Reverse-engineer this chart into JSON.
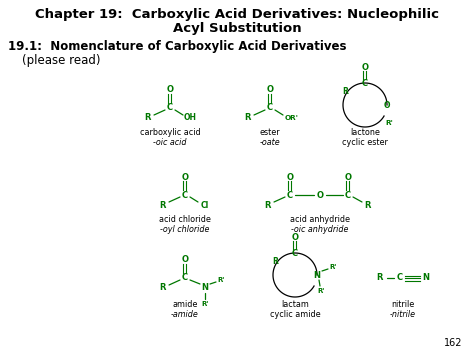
{
  "title_line1": "Chapter 19:  Carboxylic Acid Derivatives: Nucleophilic",
  "title_line2": "Acyl Substitution",
  "subtitle_line1": "19.1:  Nomenclature of Carboxylic Acid Derivatives",
  "subtitle_line2": "(please read)",
  "bg_color": "#ffffff",
  "text_color": "#000000",
  "green_color": "#007700",
  "page_number": "162"
}
